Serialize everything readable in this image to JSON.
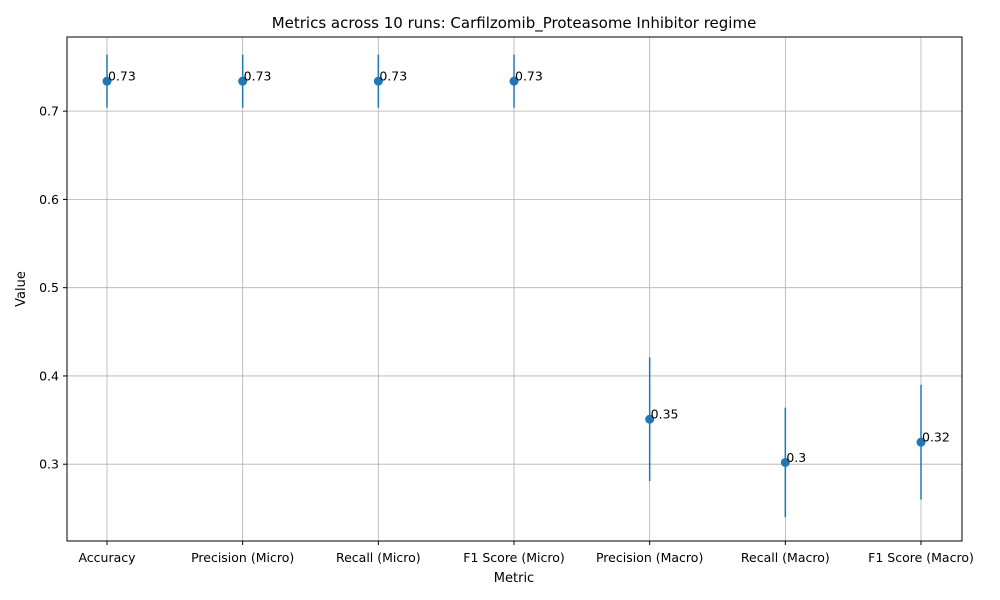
{
  "chart_data": {
    "type": "scatter",
    "title": "Metrics across 10 runs: Carfilzomib_Proteasome Inhibitor regime",
    "xlabel": "Metric",
    "ylabel": "Value",
    "categories": [
      "Accuracy",
      "Precision (Micro)",
      "Recall (Micro)",
      "F1 Score (Micro)",
      "Precision (Macro)",
      "Recall (Macro)",
      "F1 Score (Macro)"
    ],
    "values": [
      0.734,
      0.734,
      0.734,
      0.734,
      0.351,
      0.302,
      0.325
    ],
    "errors": [
      0.03,
      0.03,
      0.03,
      0.03,
      0.07,
      0.062,
      0.065
    ],
    "data_labels": [
      "0.73",
      "0.73",
      "0.73",
      "0.73",
      "0.35",
      "0.3",
      "0.32"
    ],
    "yticks": [
      0.3,
      0.4,
      0.5,
      0.6,
      0.7
    ],
    "ytick_labels": [
      "0.3",
      "0.4",
      "0.5",
      "0.6",
      "0.7"
    ],
    "ylim": [
      0.213,
      0.784
    ],
    "grid": true,
    "color": "#1f77b4"
  }
}
